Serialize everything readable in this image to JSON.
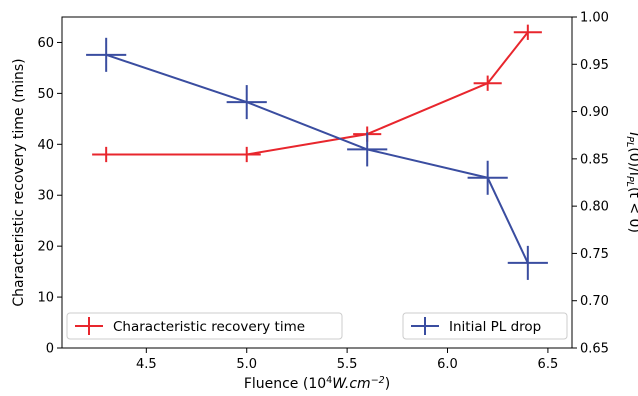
{
  "chart_data": {
    "type": "line",
    "title": "",
    "xlabel": {
      "prefix": "Fluence (10",
      "sup1": "4",
      "mid": "W.cm",
      "sup2": "−2",
      "suffix": ")"
    },
    "ylabel_left": "Characteristic recovery time (mins)",
    "ylabel_right": {
      "p1": "I",
      "s1": "PL",
      "p2": "(0)/I",
      "s2": "PL",
      "p3": "(t < 0)"
    },
    "xlim": [
      4.08,
      6.62
    ],
    "ylim_left": [
      0,
      65
    ],
    "ylim_right": [
      0.65,
      1.0
    ],
    "x_ticks": [
      "4.5",
      "5.0",
      "5.5",
      "6.0",
      "6.5"
    ],
    "y_left_ticks": [
      "0",
      "10",
      "20",
      "30",
      "40",
      "50",
      "60"
    ],
    "y_right_ticks": [
      "0.65",
      "0.70",
      "0.75",
      "0.80",
      "0.85",
      "0.90",
      "0.95",
      "1.00"
    ],
    "grid": false,
    "series": [
      {
        "name": "Characteristic recovery time",
        "axis": "left",
        "color": "#e8262d",
        "x": [
          4.3,
          5.0,
          5.6,
          6.2,
          6.4
        ],
        "y": [
          38,
          38,
          42,
          52,
          62
        ],
        "xerr": [
          0.07,
          0.07,
          0.07,
          0.07,
          0.07
        ],
        "yerr": [
          1.5,
          1.5,
          1.5,
          1.5,
          1.5
        ],
        "legend": "lower-left"
      },
      {
        "name": "Initial PL drop",
        "axis": "right",
        "color": "#3a4da0",
        "x": [
          4.3,
          5.0,
          5.6,
          6.2,
          6.4
        ],
        "y": [
          0.96,
          0.91,
          0.86,
          0.83,
          0.74
        ],
        "xerr": [
          0.1,
          0.1,
          0.1,
          0.1,
          0.1
        ],
        "yerr": [
          0.018,
          0.018,
          0.018,
          0.018,
          0.018
        ],
        "legend": "lower-right"
      }
    ]
  }
}
